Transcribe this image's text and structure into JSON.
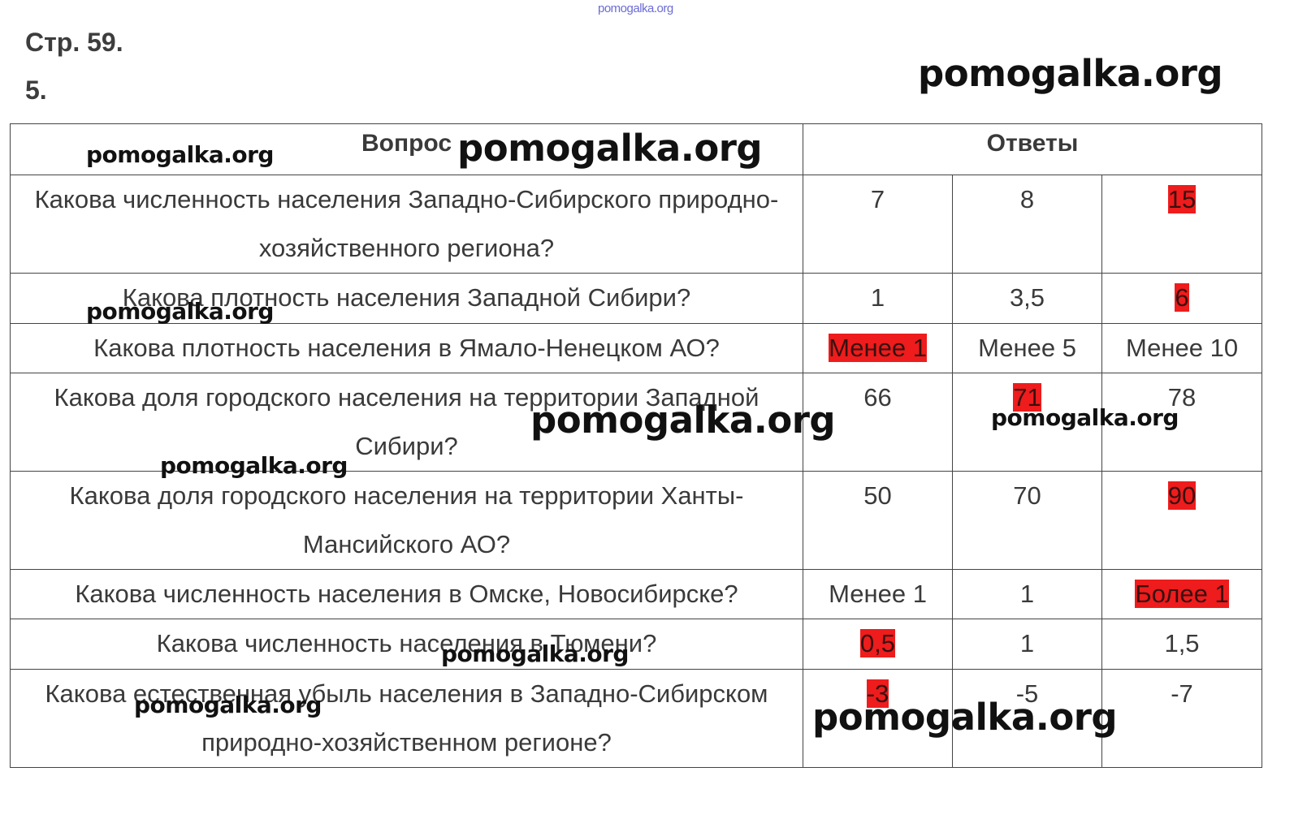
{
  "header": {
    "tiny_watermark": "pomogalka.org",
    "page_label": "Стр. 59.",
    "task_number": "5."
  },
  "table": {
    "col_question": "Вопрос",
    "col_answers": "Ответы",
    "rows": [
      {
        "question": "Какова численность населения Западно-Сибирского природно-хозяйственного региона?",
        "answers": [
          "7",
          "8",
          "15"
        ],
        "highlighted": [
          false,
          false,
          true
        ]
      },
      {
        "question": "Какова плотность населения Западной Сибири?",
        "answers": [
          "1",
          "3,5",
          "6"
        ],
        "highlighted": [
          false,
          false,
          true
        ]
      },
      {
        "question": "Какова плотность населения в Ямало-Ненецком АО?",
        "answers": [
          "Менее 1",
          "Менее 5",
          "Менее 10"
        ],
        "highlighted": [
          true,
          false,
          false
        ]
      },
      {
        "question": "Какова доля городского населения на территории Западной Сибири?",
        "answers": [
          "66",
          "71",
          "78"
        ],
        "highlighted": [
          false,
          true,
          false
        ]
      },
      {
        "question": "Какова доля городского населения на территории Ханты-Мансийского АО?",
        "answers": [
          "50",
          "70",
          "90"
        ],
        "highlighted": [
          false,
          false,
          true
        ]
      },
      {
        "question": "Какова численность населения в Омске, Новосибирске?",
        "answers": [
          "Менее 1",
          "1",
          "Более 1"
        ],
        "highlighted": [
          false,
          false,
          true
        ]
      },
      {
        "question": "Какова численность населения в Тюмени?",
        "answers": [
          "0,5",
          "1",
          "1,5"
        ],
        "highlighted": [
          true,
          false,
          false
        ]
      },
      {
        "question": "Какова естественная убыль населения в Западно-Сибирском природно-хозяйственном регионе?",
        "answers": [
          "-3",
          "-5",
          "-7"
        ],
        "highlighted": [
          true,
          false,
          false
        ]
      }
    ]
  },
  "watermark_text": "pomogalka.org",
  "colors": {
    "highlight": "#ee1c1c",
    "text": "#3a3a3a",
    "border": "#444444"
  }
}
